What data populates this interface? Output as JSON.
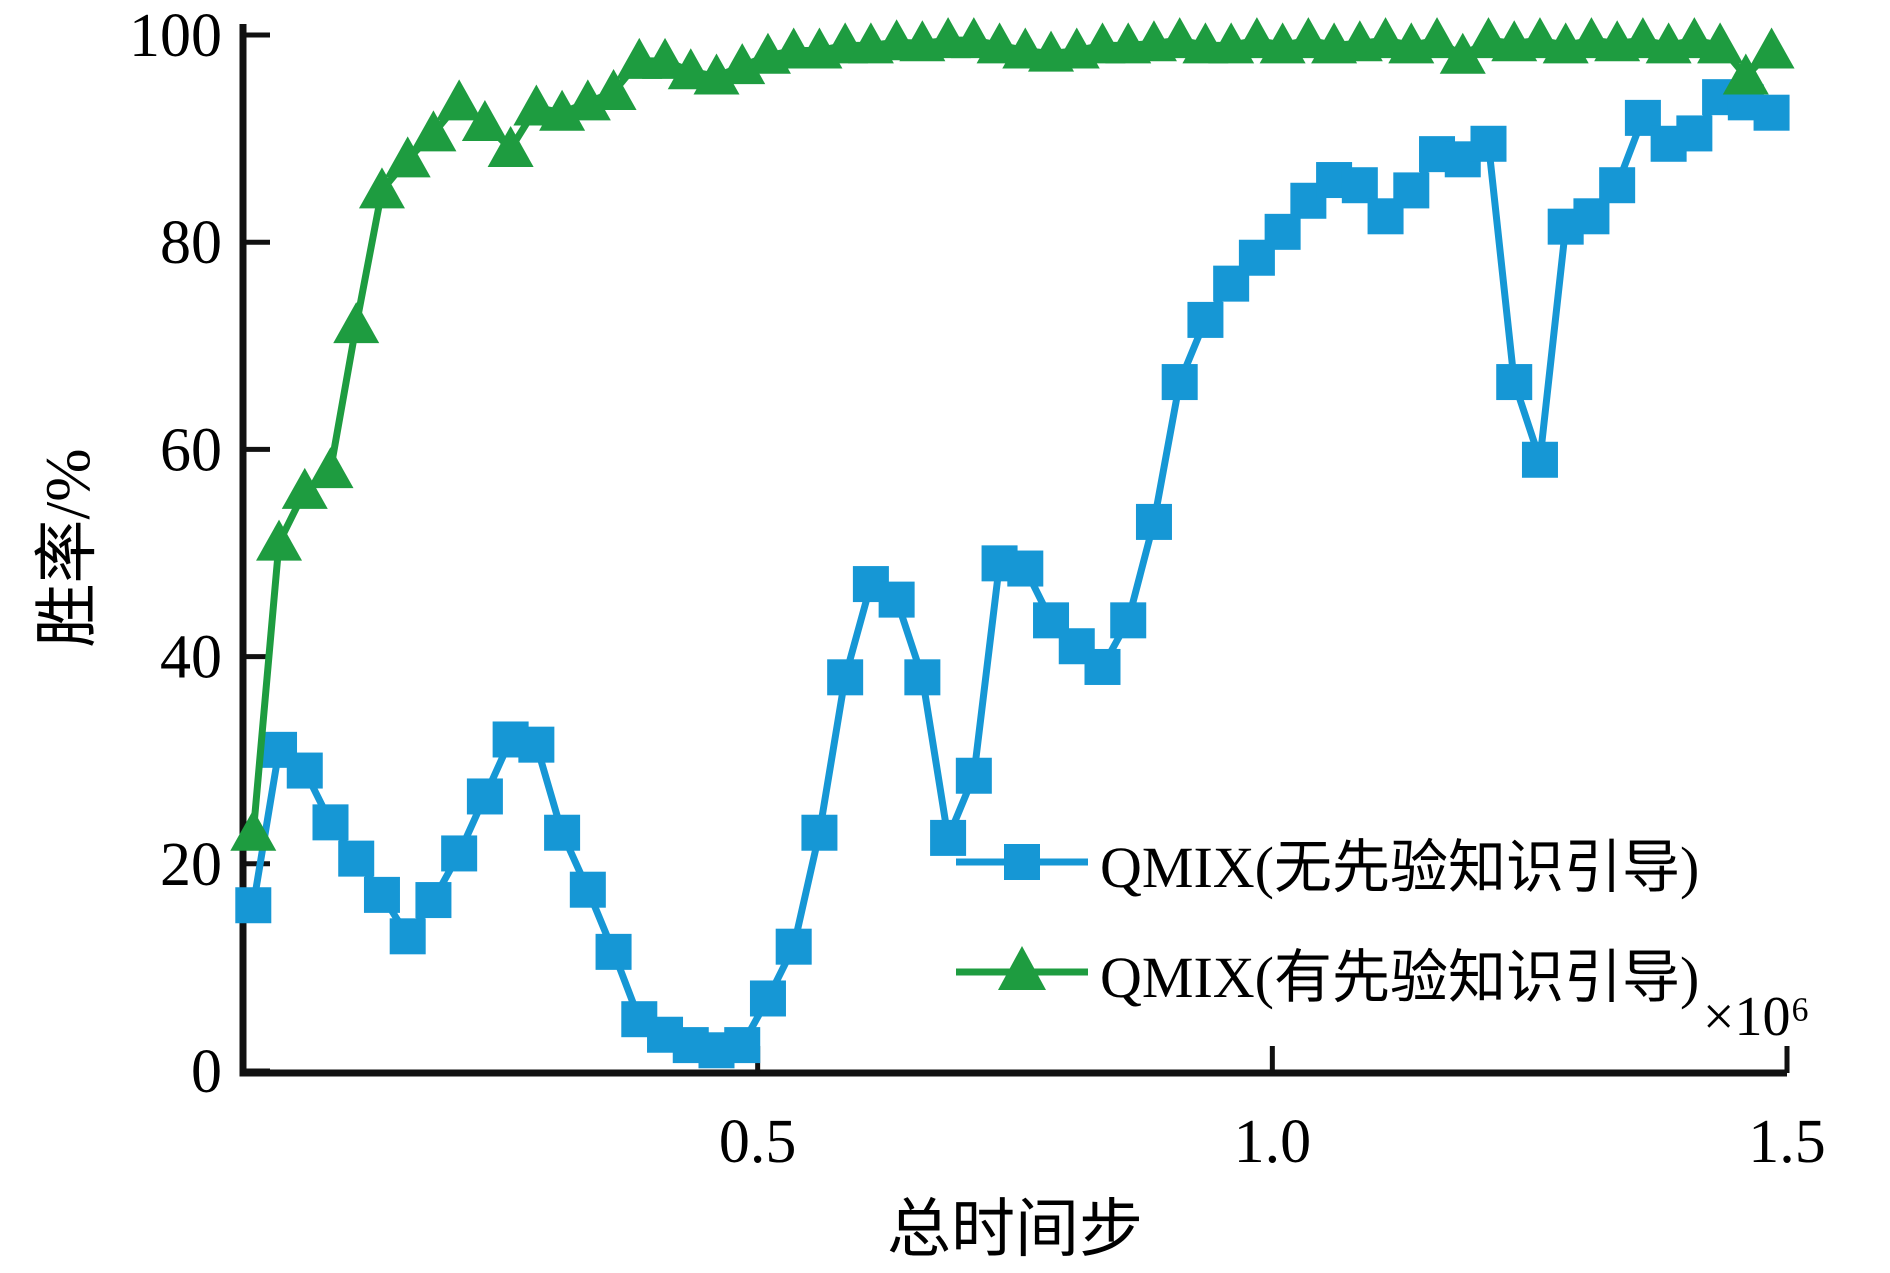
{
  "figure": {
    "background": "#ffffff",
    "axis_color": "#111111"
  },
  "chart_data": {
    "type": "line",
    "title": "",
    "xlabel": "总时间步",
    "ylabel": "胜率/%",
    "x_offset_label": "×10⁶",
    "xlim": [
      0,
      1.5
    ],
    "ylim": [
      0,
      100
    ],
    "grid": false,
    "legend_position": "lower right",
    "x_ticks": [
      {
        "value": 0.5,
        "label": "0.5"
      },
      {
        "value": 1.0,
        "label": "1.0"
      },
      {
        "value": 1.5,
        "label": "1.5"
      }
    ],
    "y_ticks": [
      {
        "value": 0,
        "label": "0"
      },
      {
        "value": 20,
        "label": "20"
      },
      {
        "value": 40,
        "label": "40"
      },
      {
        "value": 60,
        "label": "60"
      },
      {
        "value": 80,
        "label": "80"
      },
      {
        "value": 100,
        "label": "100"
      }
    ],
    "series": [
      {
        "name": "QMIX(无先验知识引导)",
        "color": "#1697d5",
        "marker": "square",
        "x": [
          0.01,
          0.035,
          0.06,
          0.085,
          0.11,
          0.135,
          0.16,
          0.185,
          0.21,
          0.235,
          0.26,
          0.285,
          0.31,
          0.335,
          0.36,
          0.385,
          0.41,
          0.435,
          0.46,
          0.485,
          0.51,
          0.535,
          0.56,
          0.585,
          0.61,
          0.635,
          0.66,
          0.685,
          0.71,
          0.735,
          0.76,
          0.785,
          0.81,
          0.835,
          0.86,
          0.885,
          0.91,
          0.935,
          0.96,
          0.985,
          1.01,
          1.035,
          1.06,
          1.085,
          1.11,
          1.135,
          1.16,
          1.185,
          1.21,
          1.235,
          1.26,
          1.285,
          1.31,
          1.335,
          1.36,
          1.385,
          1.41,
          1.435,
          1.46,
          1.485
        ],
        "y": [
          16,
          31,
          29,
          24,
          20.5,
          17,
          13,
          16.5,
          21,
          26.5,
          32,
          31.5,
          23,
          17.5,
          11.5,
          5,
          3.5,
          2.5,
          2,
          2.5,
          7,
          12,
          23,
          38,
          47,
          45.5,
          38,
          22.5,
          28.5,
          49,
          48.5,
          43.5,
          41,
          39,
          43.5,
          53,
          66.5,
          72.5,
          76,
          78.5,
          81,
          84,
          86,
          85.5,
          82.5,
          85,
          88.5,
          88,
          89.5,
          66.5,
          59,
          81.5,
          82.5,
          85.5,
          92,
          89.5,
          90.5,
          94,
          93.5,
          92.5
        ]
      },
      {
        "name": "QMIX(有先验知识引导)",
        "color": "#1e9c40",
        "marker": "triangle",
        "x": [
          0.01,
          0.035,
          0.06,
          0.085,
          0.11,
          0.135,
          0.16,
          0.185,
          0.21,
          0.235,
          0.26,
          0.285,
          0.31,
          0.335,
          0.36,
          0.385,
          0.41,
          0.435,
          0.46,
          0.485,
          0.51,
          0.535,
          0.56,
          0.585,
          0.61,
          0.635,
          0.66,
          0.685,
          0.71,
          0.735,
          0.76,
          0.785,
          0.81,
          0.835,
          0.86,
          0.885,
          0.91,
          0.935,
          0.96,
          0.985,
          1.01,
          1.035,
          1.06,
          1.085,
          1.11,
          1.135,
          1.16,
          1.185,
          1.21,
          1.235,
          1.26,
          1.285,
          1.31,
          1.335,
          1.36,
          1.385,
          1.41,
          1.435,
          1.46,
          1.485
        ],
        "y": [
          23,
          51,
          56,
          58,
          72,
          85,
          88,
          90.5,
          93.5,
          91.5,
          89,
          93,
          92.5,
          93.5,
          94.5,
          97.5,
          97.5,
          96.5,
          96,
          97,
          98,
          98.5,
          98.5,
          99,
          99,
          99.3,
          99.2,
          99.5,
          99.5,
          99,
          98.5,
          98.2,
          98.5,
          99,
          99,
          99.2,
          99.5,
          99,
          99,
          99.5,
          99,
          99.5,
          99,
          99.2,
          99.5,
          99,
          99.5,
          98,
          99.5,
          99.2,
          99.5,
          99,
          99.5,
          99.2,
          99.5,
          99,
          99.5,
          99,
          96,
          98.5
        ]
      }
    ]
  }
}
